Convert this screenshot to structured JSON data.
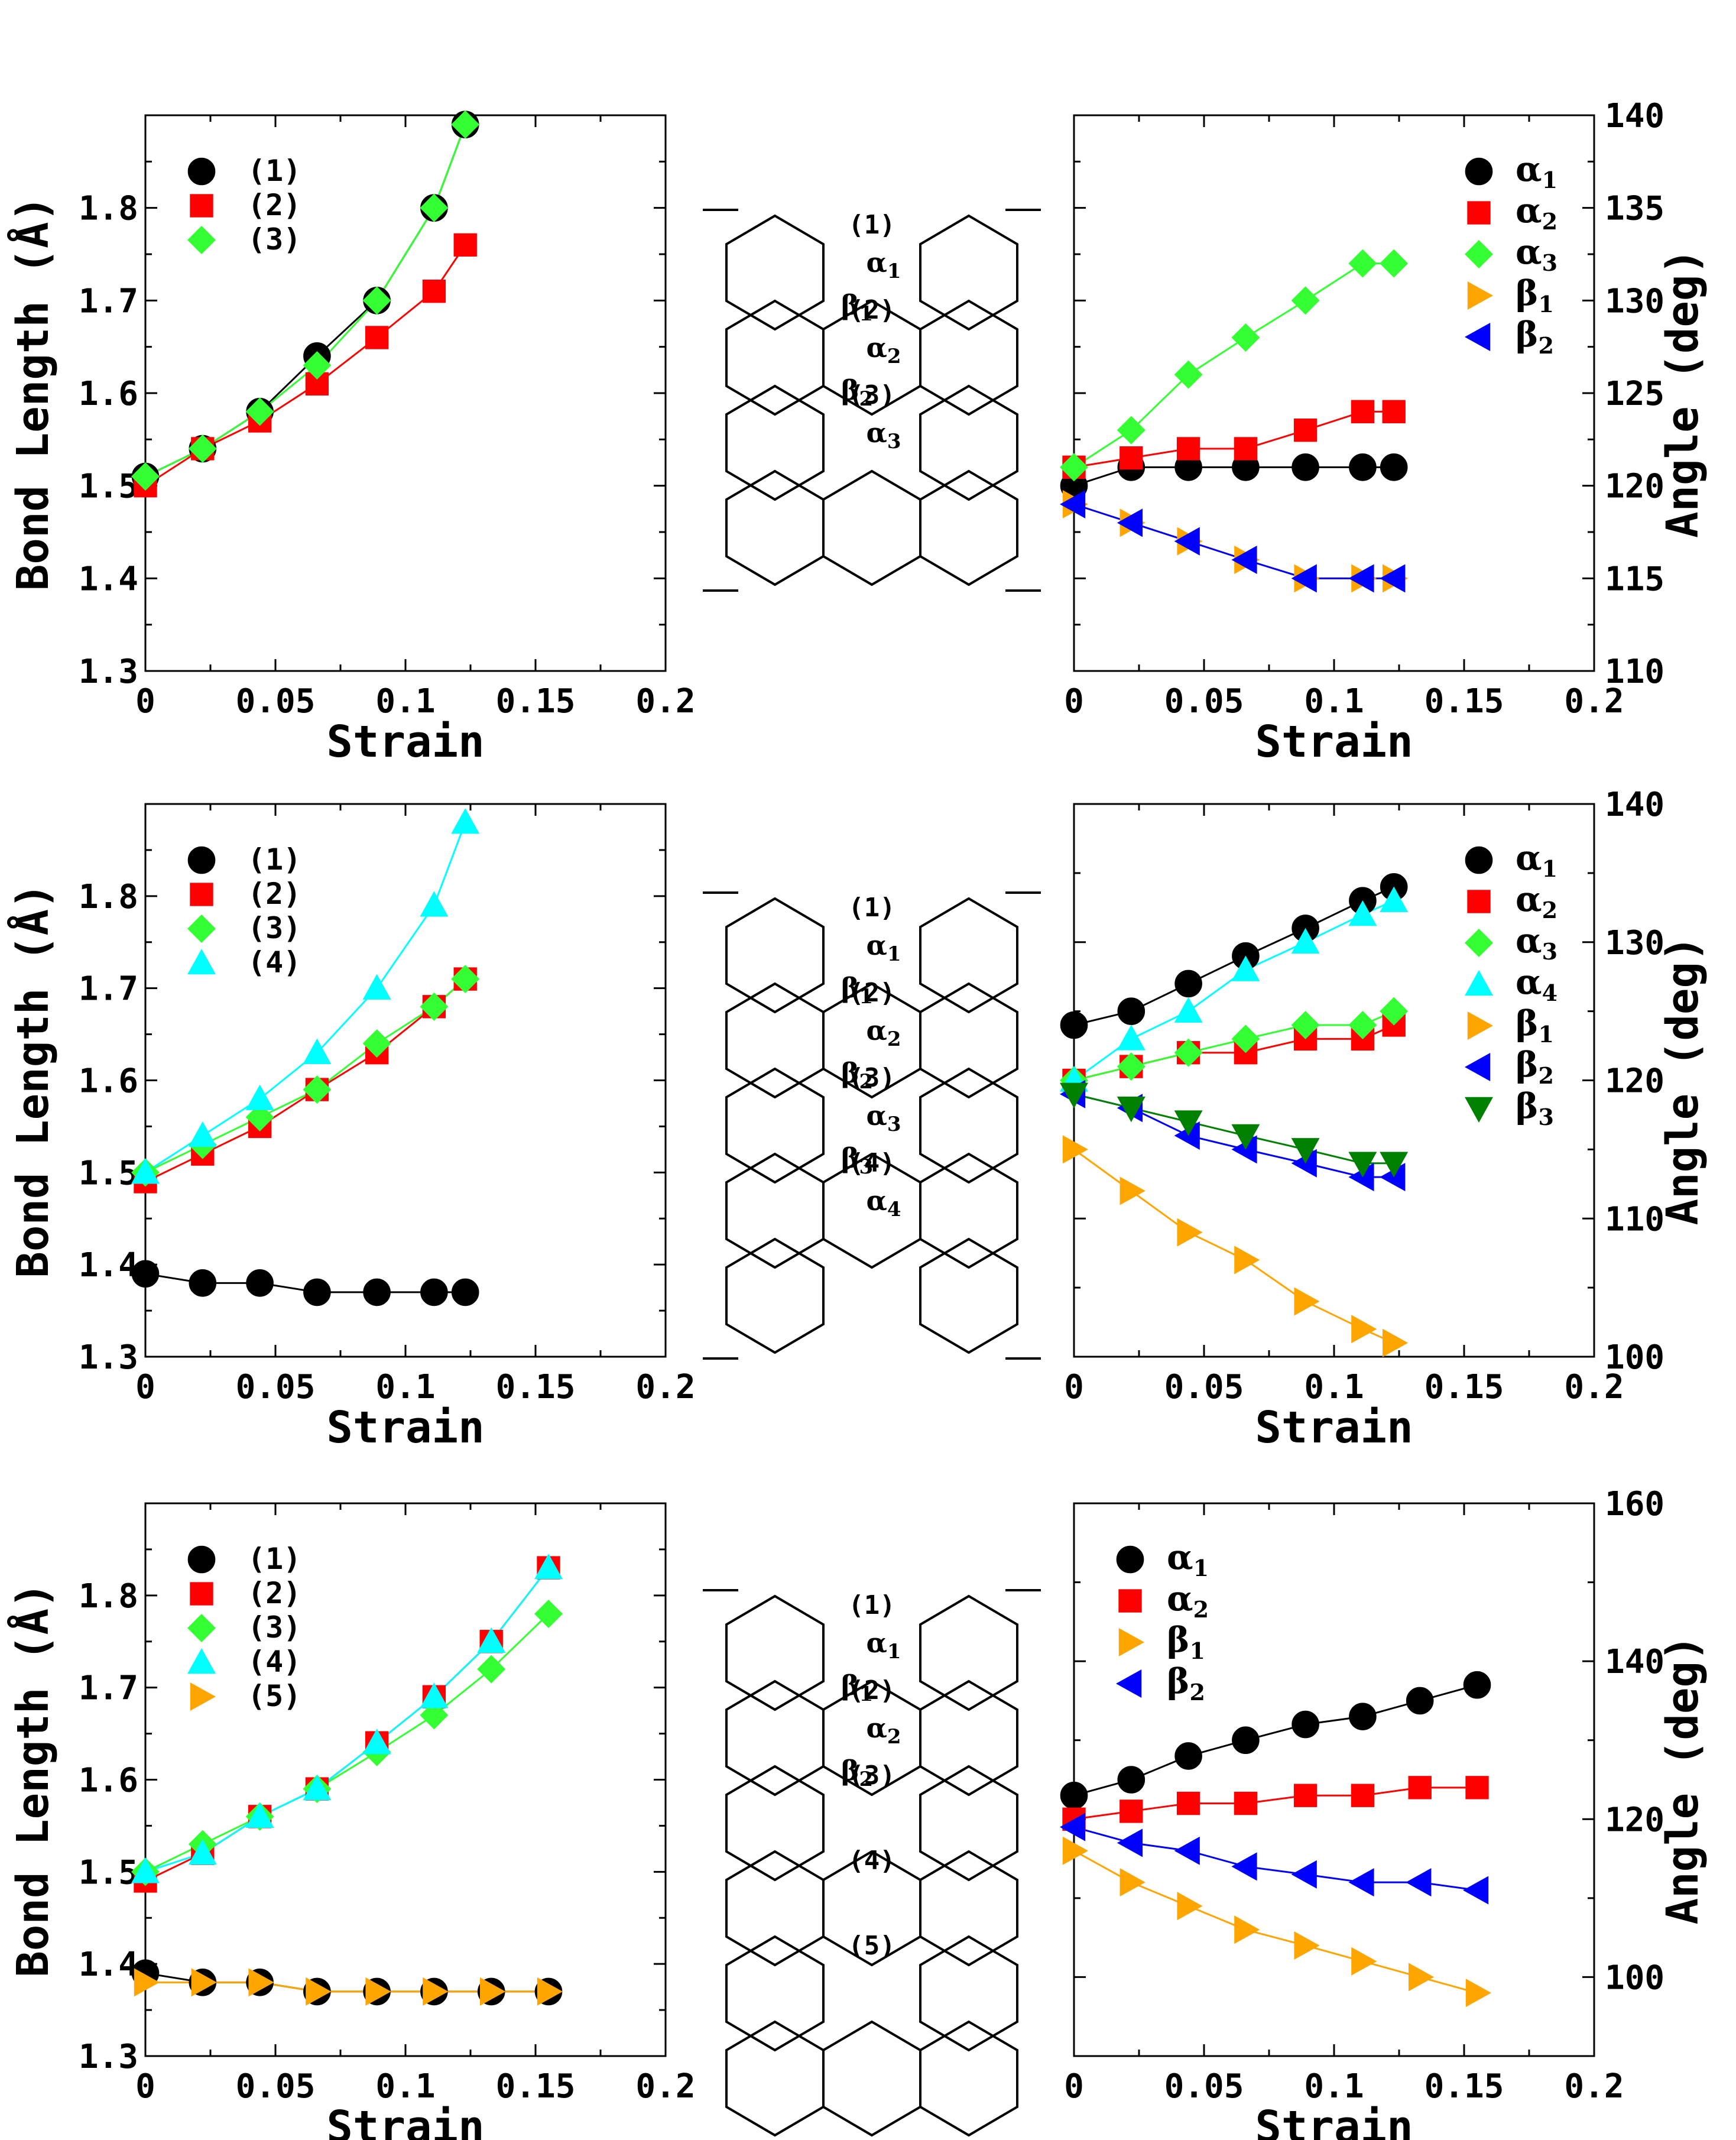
{
  "chart_data": [
    {
      "id": "row1-bond",
      "type": "line",
      "xlabel": "Strain",
      "ylabel": "Bond Length (Å)",
      "xlim": [
        0,
        0.2
      ],
      "ylim": [
        1.3,
        1.9
      ],
      "xticks": [
        "0",
        "0.05",
        "0.1",
        "0.15",
        "0.2"
      ],
      "yticks": [
        "1.3",
        "1.4",
        "1.5",
        "1.6",
        "1.7",
        "1.8"
      ],
      "yaxis_side": "left",
      "legend_position": "top-left",
      "x": [
        0,
        0.022,
        0.044,
        0.066,
        0.089,
        0.111,
        0.123
      ],
      "series": [
        {
          "name": "(1)",
          "marker": "circle",
          "color": "#000000",
          "values": [
            1.51,
            1.54,
            1.58,
            1.64,
            1.7,
            1.8,
            1.89
          ]
        },
        {
          "name": "(2)",
          "marker": "square",
          "color": "#ff0000",
          "values": [
            1.5,
            1.54,
            1.57,
            1.61,
            1.66,
            1.71,
            1.76
          ]
        },
        {
          "name": "(3)",
          "marker": "diamond",
          "color": "#33ff33",
          "values": [
            1.51,
            1.54,
            1.58,
            1.63,
            1.7,
            1.8,
            1.89
          ]
        }
      ]
    },
    {
      "id": "row1-angle",
      "type": "line",
      "xlabel": "Strain",
      "ylabel": "Angle (deg)",
      "xlim": [
        0,
        0.2
      ],
      "ylim": [
        110,
        140
      ],
      "xticks": [
        "0",
        "0.05",
        "0.1",
        "0.15",
        "0.2"
      ],
      "yticks": [
        "110",
        "115",
        "120",
        "125",
        "130",
        "135",
        "140"
      ],
      "yaxis_side": "right",
      "legend_position": "top-right",
      "x": [
        0,
        0.022,
        0.044,
        0.066,
        0.089,
        0.111,
        0.123
      ],
      "series": [
        {
          "name": "α1",
          "marker": "circle",
          "color": "#000000",
          "values": [
            120.0,
            121.0,
            121.0,
            121.0,
            121.0,
            121.0,
            121.0
          ]
        },
        {
          "name": "α2",
          "marker": "square",
          "color": "#ff0000",
          "values": [
            121.0,
            121.5,
            122.0,
            122.0,
            123.0,
            124.0,
            124.0
          ]
        },
        {
          "name": "α3",
          "marker": "diamond",
          "color": "#33ff33",
          "values": [
            121.0,
            123.0,
            126.0,
            128.0,
            130.0,
            132.0,
            132.0
          ]
        },
        {
          "name": "β1",
          "marker": "triangle-right",
          "color": "#ffa500",
          "values": [
            119.0,
            118.0,
            117.0,
            116.0,
            115.0,
            115.0,
            115.0
          ]
        },
        {
          "name": "β2",
          "marker": "triangle-left",
          "color": "#0000ff",
          "values": [
            119.0,
            118.0,
            117.0,
            116.0,
            115.0,
            115.0,
            115.0
          ]
        }
      ]
    },
    {
      "id": "row2-bond",
      "type": "line",
      "xlabel": "Strain",
      "ylabel": "Bond Length (Å)",
      "xlim": [
        0,
        0.2
      ],
      "ylim": [
        1.3,
        1.9
      ],
      "xticks": [
        "0",
        "0.05",
        "0.1",
        "0.15",
        "0.2"
      ],
      "yticks": [
        "1.3",
        "1.4",
        "1.5",
        "1.6",
        "1.7",
        "1.8"
      ],
      "yaxis_side": "left",
      "legend_position": "top-left",
      "x": [
        0,
        0.022,
        0.044,
        0.066,
        0.089,
        0.111,
        0.123
      ],
      "series": [
        {
          "name": "(1)",
          "marker": "circle",
          "color": "#000000",
          "values": [
            1.39,
            1.38,
            1.38,
            1.37,
            1.37,
            1.37,
            1.37
          ]
        },
        {
          "name": "(2)",
          "marker": "square",
          "color": "#ff0000",
          "values": [
            1.49,
            1.52,
            1.55,
            1.59,
            1.63,
            1.68,
            1.71
          ]
        },
        {
          "name": "(3)",
          "marker": "diamond",
          "color": "#33ff33",
          "values": [
            1.5,
            1.53,
            1.56,
            1.59,
            1.64,
            1.68,
            1.71
          ]
        },
        {
          "name": "(4)",
          "marker": "triangle-up",
          "color": "#00ffff",
          "values": [
            1.5,
            1.54,
            1.58,
            1.63,
            1.7,
            1.79,
            1.88
          ]
        }
      ]
    },
    {
      "id": "row2-angle",
      "type": "line",
      "xlabel": "Strain",
      "ylabel": "Angle (deg)",
      "xlim": [
        0,
        0.2
      ],
      "ylim": [
        100,
        140
      ],
      "xticks": [
        "0",
        "0.05",
        "0.1",
        "0.15",
        "0.2"
      ],
      "yticks": [
        "100",
        "110",
        "120",
        "130",
        "140"
      ],
      "yaxis_side": "right",
      "legend_position": "top-right",
      "x": [
        0,
        0.022,
        0.044,
        0.066,
        0.089,
        0.111,
        0.123
      ],
      "series": [
        {
          "name": "α1",
          "marker": "circle",
          "color": "#000000",
          "values": [
            124.0,
            125.0,
            127.0,
            129.0,
            131.0,
            133.0,
            134.0
          ]
        },
        {
          "name": "α2",
          "marker": "square",
          "color": "#ff0000",
          "values": [
            120.0,
            121.0,
            122.0,
            122.0,
            123.0,
            123.0,
            124.0
          ]
        },
        {
          "name": "α3",
          "marker": "diamond",
          "color": "#33ff33",
          "values": [
            120.0,
            121.0,
            122.0,
            123.0,
            124.0,
            124.0,
            125.0
          ]
        },
        {
          "name": "α4",
          "marker": "triangle-up",
          "color": "#00ffff",
          "values": [
            120.0,
            123.0,
            125.0,
            128.0,
            130.0,
            132.0,
            133.0
          ]
        },
        {
          "name": "β1",
          "marker": "triangle-right",
          "color": "#ffa500",
          "values": [
            115.0,
            112.0,
            109.0,
            107.0,
            104.0,
            102.0,
            101.0
          ]
        },
        {
          "name": "β2",
          "marker": "triangle-left",
          "color": "#0000ff",
          "values": [
            119.0,
            118.0,
            116.0,
            115.0,
            114.0,
            113.0,
            113.0
          ]
        },
        {
          "name": "β3",
          "marker": "triangle-down",
          "color": "#008000",
          "values": [
            119.0,
            118.0,
            117.0,
            116.0,
            115.0,
            114.0,
            114.0
          ]
        }
      ]
    },
    {
      "id": "row3-bond",
      "type": "line",
      "xlabel": "Strain",
      "ylabel": "Bond Length (Å)",
      "xlim": [
        0,
        0.2
      ],
      "ylim": [
        1.3,
        1.9
      ],
      "xticks": [
        "0",
        "0.05",
        "0.1",
        "0.15",
        "0.2"
      ],
      "yticks": [
        "1.3",
        "1.4",
        "1.5",
        "1.6",
        "1.7",
        "1.8"
      ],
      "yaxis_side": "left",
      "legend_position": "top-left",
      "x": [
        0,
        0.022,
        0.044,
        0.066,
        0.089,
        0.111,
        0.133,
        0.155
      ],
      "series": [
        {
          "name": "(1)",
          "marker": "circle",
          "color": "#000000",
          "values": [
            1.39,
            1.38,
            1.38,
            1.37,
            1.37,
            1.37,
            1.37,
            1.37
          ]
        },
        {
          "name": "(2)",
          "marker": "square",
          "color": "#ff0000",
          "values": [
            1.49,
            1.52,
            1.56,
            1.59,
            1.64,
            1.69,
            1.75,
            1.83
          ]
        },
        {
          "name": "(3)",
          "marker": "diamond",
          "color": "#33ff33",
          "values": [
            1.5,
            1.53,
            1.56,
            1.59,
            1.63,
            1.67,
            1.72,
            1.78
          ]
        },
        {
          "name": "(4)",
          "marker": "triangle-up",
          "color": "#00ffff",
          "values": [
            1.5,
            1.52,
            1.56,
            1.59,
            1.64,
            1.69,
            1.75,
            1.83
          ]
        },
        {
          "name": "(5)",
          "marker": "triangle-right",
          "color": "#ffa500",
          "values": [
            1.38,
            1.38,
            1.38,
            1.37,
            1.37,
            1.37,
            1.37,
            1.37
          ]
        }
      ]
    },
    {
      "id": "row3-angle",
      "type": "line",
      "xlabel": "Strain",
      "ylabel": "Angle (deg)",
      "xlim": [
        0,
        0.2
      ],
      "ylim": [
        90,
        160
      ],
      "xticks": [
        "0",
        "0.05",
        "0.1",
        "0.15",
        "0.2"
      ],
      "yticks": [
        "100",
        "120",
        "140",
        "160"
      ],
      "yaxis_side": "right",
      "legend_position": "top-left",
      "x": [
        0,
        0.022,
        0.044,
        0.066,
        0.089,
        0.111,
        0.133,
        0.155
      ],
      "series": [
        {
          "name": "α1",
          "marker": "circle",
          "color": "#000000",
          "values": [
            123.0,
            125.0,
            128.0,
            130.0,
            132.0,
            133.0,
            135.0,
            137.0
          ]
        },
        {
          "name": "α2",
          "marker": "square",
          "color": "#ff0000",
          "values": [
            120.0,
            121.0,
            122.0,
            122.0,
            123.0,
            123.0,
            124.0,
            124.0
          ]
        },
        {
          "name": "β1",
          "marker": "triangle-right",
          "color": "#ffa500",
          "values": [
            116.0,
            112.0,
            109.0,
            106.0,
            104.0,
            102.0,
            100.0,
            98.0
          ]
        },
        {
          "name": "β2",
          "marker": "triangle-left",
          "color": "#0000ff",
          "values": [
            119.0,
            117.0,
            116.0,
            114.0,
            113.0,
            112.0,
            112.0,
            111.0
          ]
        }
      ]
    }
  ],
  "diagrams": [
    {
      "id": "row1-diagram",
      "bond_labels": [
        "(1)",
        "(2)",
        "(3)"
      ],
      "angle_labels": [
        "α1",
        "β1",
        "α2",
        "β2",
        "α3"
      ]
    },
    {
      "id": "row2-diagram",
      "bond_labels": [
        "(1)",
        "(2)",
        "(3)",
        "(4)"
      ],
      "angle_labels": [
        "α1",
        "β1",
        "α2",
        "β2",
        "α3",
        "β3",
        "α4"
      ]
    },
    {
      "id": "row3-diagram",
      "bond_labels": [
        "(1)",
        "(2)",
        "(3)",
        "(4)",
        "(5)"
      ],
      "angle_labels": [
        "α1",
        "β1",
        "α2",
        "β2"
      ]
    }
  ]
}
